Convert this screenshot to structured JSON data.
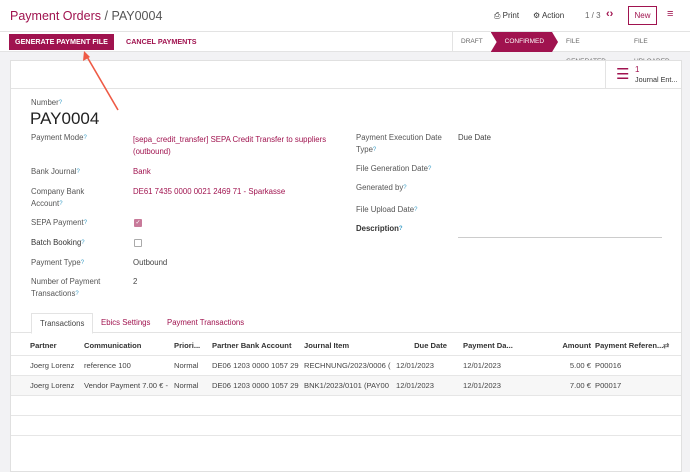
{
  "breadcrumb": {
    "parent": "Payment Orders",
    "current": "PAY0004"
  },
  "topbar": {
    "print": "Print",
    "action": "Action",
    "pager": "1 / 3",
    "new": "New"
  },
  "actions": {
    "generate": "GENERATE PAYMENT FILE",
    "cancel": "CANCEL PAYMENTS"
  },
  "stages": [
    {
      "label": "DRAFT",
      "active": false
    },
    {
      "label": "CONFIRMED",
      "active": true
    },
    {
      "label": "FILE GENERATED",
      "active": false
    },
    {
      "label": "FILE UPLOADED",
      "active": false
    }
  ],
  "smart_button": {
    "count": "1",
    "label": "Journal Ent..."
  },
  "accent": "#a0134f",
  "form": {
    "number_label": "Number",
    "number": "PAY0004",
    "payment_mode_label": "Payment Mode",
    "payment_mode": "[sepa_credit_transfer] SEPA Credit Transfer to suppliers",
    "payment_mode2": "(outbound)",
    "bank_journal_label": "Bank Journal",
    "bank_journal": "Bank",
    "company_bank_label1": "Company Bank",
    "company_bank_label2": "Account",
    "company_bank": "DE61 7435 0000 0021 2469 71 - Sparkasse",
    "sepa_label": "SEPA Payment",
    "sepa": true,
    "batch_label": "Batch Booking",
    "batch": false,
    "payment_type_label": "Payment Type",
    "payment_type": "Outbound",
    "num_tx_label1": "Number of Payment",
    "num_tx_label2": "Transactions",
    "num_tx": "2",
    "exec_label1": "Payment Execution Date",
    "exec_label2": "Type",
    "exec": "Due Date",
    "file_gen_label": "File Generation Date",
    "generated_by_label": "Generated by",
    "upload_label": "File Upload Date",
    "description_label": "Description"
  },
  "tabs": [
    "Transactions",
    "Ebics Settings",
    "Payment Transactions"
  ],
  "table": {
    "headers": [
      "Partner",
      "Communication",
      "Priori...",
      "Partner Bank Account",
      "Journal Item",
      "Due Date",
      "Payment Da...",
      "Amount",
      "Payment Referen..."
    ],
    "rows": [
      [
        "Joerg Lorenz",
        "reference 100",
        "Normal",
        "DE06 1203 0000 1057 29",
        "RECHNUNG/2023/0006 (",
        "12/01/2023",
        "12/01/2023",
        "5.00 €",
        "P00016"
      ],
      [
        "Joerg Lorenz",
        "Vendor Payment 7.00 € -",
        "Normal",
        "DE06 1203 0000 1057 29",
        "BNK1/2023/0101 (PAY00",
        "12/01/2023",
        "12/01/2023",
        "7.00 €",
        "P00017"
      ]
    ]
  }
}
